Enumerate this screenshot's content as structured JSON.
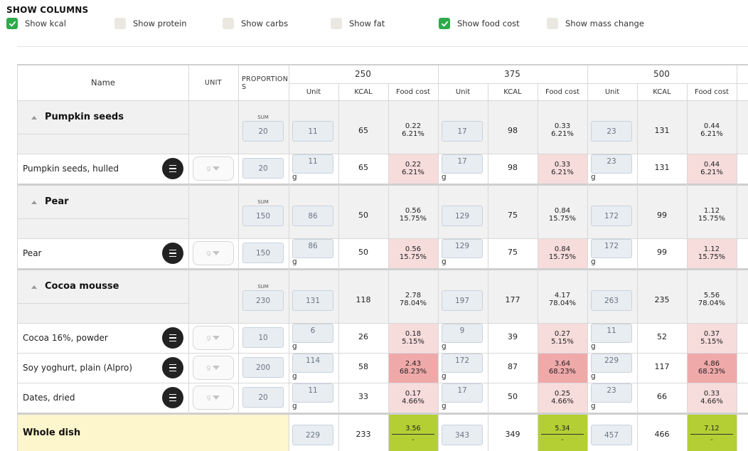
{
  "show_columns": {
    "title": "SHOW COLUMNS",
    "options": [
      {
        "label": "Show kcal",
        "checked": true
      },
      {
        "label": "Show protein",
        "checked": false
      },
      {
        "label": "Show carbs",
        "checked": false
      },
      {
        "label": "Show fat",
        "checked": false
      },
      {
        "label": "Show food cost",
        "checked": true
      },
      {
        "label": "Show mass change",
        "checked": false
      }
    ]
  },
  "table": {
    "headers": {
      "name": "Name",
      "unit": "UNIT",
      "proportion_1": "PROPORTION",
      "proportion_2": "S",
      "portions": [
        "250",
        "375",
        "500"
      ],
      "sub": [
        "Unit",
        "KCAL",
        "Food cost"
      ]
    },
    "sum_label": "SUM",
    "unit_g": "g",
    "unit_select": "g",
    "groups": [
      {
        "title": "Pumpkin seeds",
        "sum": "20",
        "portions": [
          {
            "unit": "11",
            "kcal": "65",
            "cost": "0.22",
            "pct": "6.21%"
          },
          {
            "unit": "17",
            "kcal": "98",
            "cost": "0.33",
            "pct": "6.21%"
          },
          {
            "unit": "23",
            "kcal": "131",
            "cost": "0.44",
            "pct": "6.21%"
          }
        ],
        "items": [
          {
            "name": "Pumpkin seeds, hulled",
            "proportion": "20",
            "highlight": "light",
            "portions": [
              {
                "unit": "11",
                "kcal": "65",
                "cost": "0.22",
                "pct": "6.21%"
              },
              {
                "unit": "17",
                "kcal": "98",
                "cost": "0.33",
                "pct": "6.21%"
              },
              {
                "unit": "23",
                "kcal": "131",
                "cost": "0.44",
                "pct": "6.21%"
              }
            ]
          }
        ]
      },
      {
        "title": "Pear",
        "sum": "150",
        "portions": [
          {
            "unit": "86",
            "kcal": "50",
            "cost": "0.56",
            "pct": "15.75%"
          },
          {
            "unit": "129",
            "kcal": "75",
            "cost": "0.84",
            "pct": "15.75%"
          },
          {
            "unit": "172",
            "kcal": "99",
            "cost": "1.12",
            "pct": "15.75%"
          }
        ],
        "items": [
          {
            "name": "Pear",
            "proportion": "150",
            "highlight": "light",
            "portions": [
              {
                "unit": "86",
                "kcal": "50",
                "cost": "0.56",
                "pct": "15.75%"
              },
              {
                "unit": "129",
                "kcal": "75",
                "cost": "0.84",
                "pct": "15.75%"
              },
              {
                "unit": "172",
                "kcal": "99",
                "cost": "1.12",
                "pct": "15.75%"
              }
            ]
          }
        ]
      },
      {
        "title": "Cocoa mousse",
        "sum": "230",
        "portions": [
          {
            "unit": "131",
            "kcal": "118",
            "cost": "2.78",
            "pct": "78.04%"
          },
          {
            "unit": "197",
            "kcal": "177",
            "cost": "4.17",
            "pct": "78.04%"
          },
          {
            "unit": "263",
            "kcal": "235",
            "cost": "5.56",
            "pct": "78.04%"
          }
        ],
        "items": [
          {
            "name": "Cocoa 16%, powder",
            "proportion": "10",
            "highlight": "light",
            "portions": [
              {
                "unit": "6",
                "kcal": "26",
                "cost": "0.18",
                "pct": "5.15%"
              },
              {
                "unit": "9",
                "kcal": "39",
                "cost": "0.27",
                "pct": "5.15%"
              },
              {
                "unit": "11",
                "kcal": "52",
                "cost": "0.37",
                "pct": "5.15%"
              }
            ]
          },
          {
            "name": "Soy yoghurt, plain (Alpro)",
            "proportion": "200",
            "highlight": "dark",
            "portions": [
              {
                "unit": "114",
                "kcal": "58",
                "cost": "2.43",
                "pct": "68.23%"
              },
              {
                "unit": "172",
                "kcal": "87",
                "cost": "3.64",
                "pct": "68.23%"
              },
              {
                "unit": "229",
                "kcal": "117",
                "cost": "4.86",
                "pct": "68.23%"
              }
            ]
          },
          {
            "name": "Dates, dried",
            "proportion": "20",
            "highlight": "light",
            "portions": [
              {
                "unit": "11",
                "kcal": "33",
                "cost": "0.17",
                "pct": "4.66%"
              },
              {
                "unit": "17",
                "kcal": "50",
                "cost": "0.25",
                "pct": "4.66%"
              },
              {
                "unit": "23",
                "kcal": "66",
                "cost": "0.33",
                "pct": "4.66%"
              }
            ]
          }
        ]
      }
    ],
    "whole_dish": {
      "label": "Whole dish",
      "portions": [
        {
          "unit": "229",
          "kcal": "233",
          "cost": "3.56",
          "sub": "-"
        },
        {
          "unit": "343",
          "kcal": "349",
          "cost": "5.34",
          "sub": "-"
        },
        {
          "unit": "457",
          "kcal": "466",
          "cost": "7.12",
          "sub": "-"
        }
      ]
    }
  },
  "colors": {
    "check_green": "#2eaa4c",
    "cost_light": "#f7dcdc",
    "cost_dark": "#f0a9a9",
    "total_green": "#b3cf33",
    "total_row": "#fdf5cc",
    "group_row": "#f1f1f1"
  }
}
